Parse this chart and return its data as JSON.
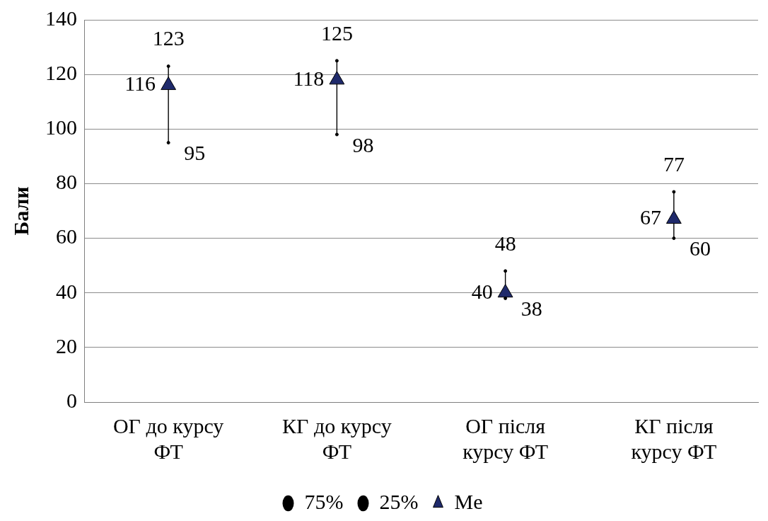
{
  "chart_data": {
    "type": "scatter",
    "ylabel": "Бали",
    "categories": [
      "ОГ до курсу ФТ",
      "КГ до курсу ФТ",
      "ОГ після курсу ФТ",
      "КГ після курсу ФТ"
    ],
    "series": [
      {
        "name": "75%",
        "color": "#000000",
        "values": [
          123,
          125,
          48,
          77
        ]
      },
      {
        "name": "25%",
        "color": "#000000",
        "values": [
          95,
          98,
          38,
          60
        ]
      },
      {
        "name": "Me",
        "color": "#1f2a6b",
        "marker": "triangle",
        "values": [
          116,
          118,
          40,
          67
        ]
      }
    ],
    "ylim": [
      0,
      140
    ],
    "yticks": [
      0,
      20,
      40,
      60,
      80,
      100,
      120,
      140
    ],
    "grid": "y",
    "legend": "bottom",
    "data_labels": true
  }
}
